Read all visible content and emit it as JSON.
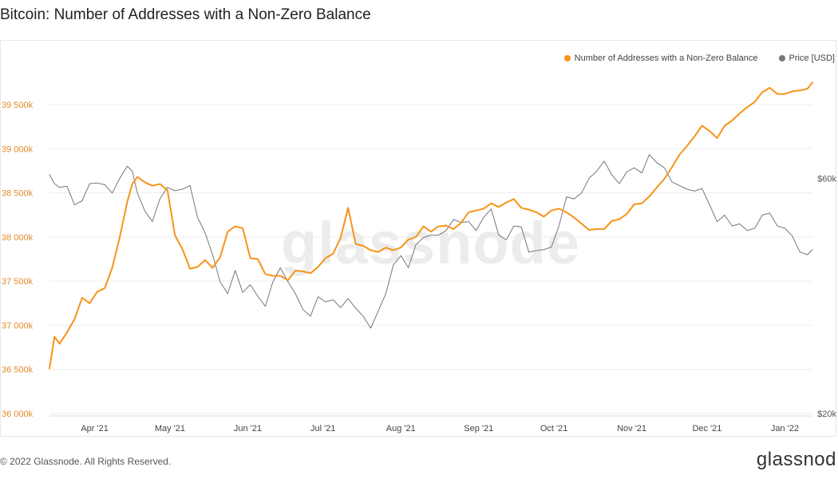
{
  "page": {
    "title": "Bitcoin: Number of Addresses with a Non-Zero Balance",
    "watermark": "glassnode",
    "copyright": "© 2022 Glassnode. All Rights Reserved.",
    "brand": "glassnod"
  },
  "colors": {
    "addresses": "#f7931a",
    "price": "#777777",
    "left_axis_text": "#e28a2a",
    "grid": "#ededed"
  },
  "chart_data": {
    "type": "line",
    "title": "Bitcoin: Number of Addresses with a Non-Zero Balance",
    "legend_position": "top-right",
    "grid": true,
    "x": [
      "2021-03-14",
      "2021-03-16",
      "2021-03-18",
      "2021-03-21",
      "2021-03-24",
      "2021-03-27",
      "2021-03-30",
      "2021-04-02",
      "2021-04-05",
      "2021-04-08",
      "2021-04-11",
      "2021-04-14",
      "2021-04-16",
      "2021-04-18",
      "2021-04-21",
      "2021-04-24",
      "2021-04-27",
      "2021-04-30",
      "2021-05-03",
      "2021-05-06",
      "2021-05-09",
      "2021-05-12",
      "2021-05-15",
      "2021-05-18",
      "2021-05-21",
      "2021-05-24",
      "2021-05-27",
      "2021-05-30",
      "2021-06-02",
      "2021-06-05",
      "2021-06-08",
      "2021-06-11",
      "2021-06-14",
      "2021-06-17",
      "2021-06-20",
      "2021-06-23",
      "2021-06-26",
      "2021-06-29",
      "2021-07-02",
      "2021-07-05",
      "2021-07-08",
      "2021-07-11",
      "2021-07-14",
      "2021-07-17",
      "2021-07-20",
      "2021-07-23",
      "2021-07-26",
      "2021-07-29",
      "2021-08-01",
      "2021-08-04",
      "2021-08-07",
      "2021-08-10",
      "2021-08-13",
      "2021-08-16",
      "2021-08-19",
      "2021-08-22",
      "2021-08-25",
      "2021-08-28",
      "2021-08-31",
      "2021-09-03",
      "2021-09-06",
      "2021-09-09",
      "2021-09-12",
      "2021-09-15",
      "2021-09-18",
      "2021-09-21",
      "2021-09-24",
      "2021-09-27",
      "2021-09-30",
      "2021-10-03",
      "2021-10-06",
      "2021-10-09",
      "2021-10-12",
      "2021-10-15",
      "2021-10-18",
      "2021-10-21",
      "2021-10-24",
      "2021-10-27",
      "2021-10-30",
      "2021-11-02",
      "2021-11-05",
      "2021-11-08",
      "2021-11-11",
      "2021-11-14",
      "2021-11-17",
      "2021-11-20",
      "2021-11-23",
      "2021-11-26",
      "2021-11-29",
      "2021-12-02",
      "2021-12-05",
      "2021-12-08",
      "2021-12-11",
      "2021-12-14",
      "2021-12-17",
      "2021-12-20",
      "2021-12-23",
      "2021-12-26",
      "2021-12-29",
      "2022-01-01",
      "2022-01-04",
      "2022-01-07",
      "2022-01-10",
      "2022-01-12"
    ],
    "x_ticks": [
      {
        "date": "2021-04-01",
        "label": "Apr '21"
      },
      {
        "date": "2021-05-01",
        "label": "May '21"
      },
      {
        "date": "2021-06-01",
        "label": "Jun '21"
      },
      {
        "date": "2021-07-01",
        "label": "Jul '21"
      },
      {
        "date": "2021-08-01",
        "label": "Aug '21"
      },
      {
        "date": "2021-09-01",
        "label": "Sep '21"
      },
      {
        "date": "2021-10-01",
        "label": "Oct '21"
      },
      {
        "date": "2021-11-01",
        "label": "Nov '21"
      },
      {
        "date": "2021-12-01",
        "label": "Dec '21"
      },
      {
        "date": "2022-01-01",
        "label": "Jan '22"
      }
    ],
    "y_left": {
      "range": [
        36000000,
        39780000
      ],
      "ticks": [
        {
          "value": 36000000,
          "label": "36 000k"
        },
        {
          "value": 36500000,
          "label": "36 500k"
        },
        {
          "value": 37000000,
          "label": "37 000k"
        },
        {
          "value": 37500000,
          "label": "37 500k"
        },
        {
          "value": 38000000,
          "label": "38 000k"
        },
        {
          "value": 38500000,
          "label": "38 500k"
        },
        {
          "value": 39000000,
          "label": "39 000k"
        },
        {
          "value": 39500000,
          "label": "39 500k"
        }
      ]
    },
    "y_right": {
      "scale": "log",
      "range": [
        20000,
        95000
      ],
      "ticks": [
        {
          "value": 20000,
          "label": "$20k"
        },
        {
          "value": 60000,
          "label": "$60k"
        }
      ]
    },
    "series": [
      {
        "name": "Number of Addresses with a Non-Zero Balance",
        "axis": "left",
        "color": "#f7931a",
        "values": [
          36510000,
          36870000,
          36790000,
          36920000,
          37070000,
          37310000,
          37250000,
          37380000,
          37420000,
          37650000,
          38000000,
          38400000,
          38600000,
          38680000,
          38620000,
          38580000,
          38600000,
          38530000,
          38020000,
          37860000,
          37640000,
          37660000,
          37740000,
          37650000,
          37770000,
          38060000,
          38120000,
          38100000,
          37760000,
          37750000,
          37580000,
          37560000,
          37560000,
          37510000,
          37620000,
          37610000,
          37590000,
          37660000,
          37760000,
          37810000,
          37990000,
          38330000,
          37920000,
          37900000,
          37850000,
          37830000,
          37880000,
          37850000,
          37880000,
          37970000,
          38000000,
          38120000,
          38060000,
          38120000,
          38130000,
          38090000,
          38160000,
          38280000,
          38300000,
          38320000,
          38380000,
          38340000,
          38390000,
          38430000,
          38330000,
          38310000,
          38280000,
          38230000,
          38300000,
          38320000,
          38280000,
          38220000,
          38150000,
          38080000,
          38090000,
          38090000,
          38180000,
          38200000,
          38260000,
          38370000,
          38380000,
          38460000,
          38560000,
          38660000,
          38790000,
          38930000,
          39030000,
          39140000,
          39260000,
          39200000,
          39120000,
          39260000,
          39320000,
          39400000,
          39470000,
          39530000,
          39640000,
          39690000,
          39620000,
          39620000,
          39650000,
          39660000,
          39680000,
          39750000
        ]
      },
      {
        "name": "Price [USD]",
        "axis": "right",
        "color": "#777777",
        "values": [
          61000,
          58500,
          57500,
          57800,
          53000,
          54000,
          58500,
          58700,
          58200,
          56000,
          60000,
          63500,
          62000,
          56000,
          51500,
          49000,
          54500,
          57500,
          56600,
          57000,
          58000,
          50000,
          46500,
          42000,
          37000,
          35000,
          39000,
          35200,
          36500,
          34600,
          33000,
          37000,
          39500,
          37000,
          35000,
          32500,
          31500,
          34500,
          33700,
          34000,
          32800,
          34200,
          32700,
          31500,
          29800,
          32300,
          35000,
          40000,
          41800,
          39500,
          44000,
          45500,
          46000,
          46000,
          47000,
          49500,
          48800,
          49000,
          47000,
          50000,
          52000,
          46000,
          45000,
          48000,
          47800,
          42500,
          42800,
          43000,
          43500,
          48000,
          55000,
          54500,
          56000,
          60000,
          62000,
          65000,
          61000,
          58500,
          61800,
          63000,
          61500,
          67000,
          64500,
          63000,
          59000,
          58000,
          57000,
          56500,
          57200,
          53000,
          49000,
          50500,
          48000,
          48500,
          47000,
          47500,
          50500,
          51000,
          48000,
          47500,
          45800,
          42500,
          42000,
          43000
        ]
      }
    ]
  }
}
